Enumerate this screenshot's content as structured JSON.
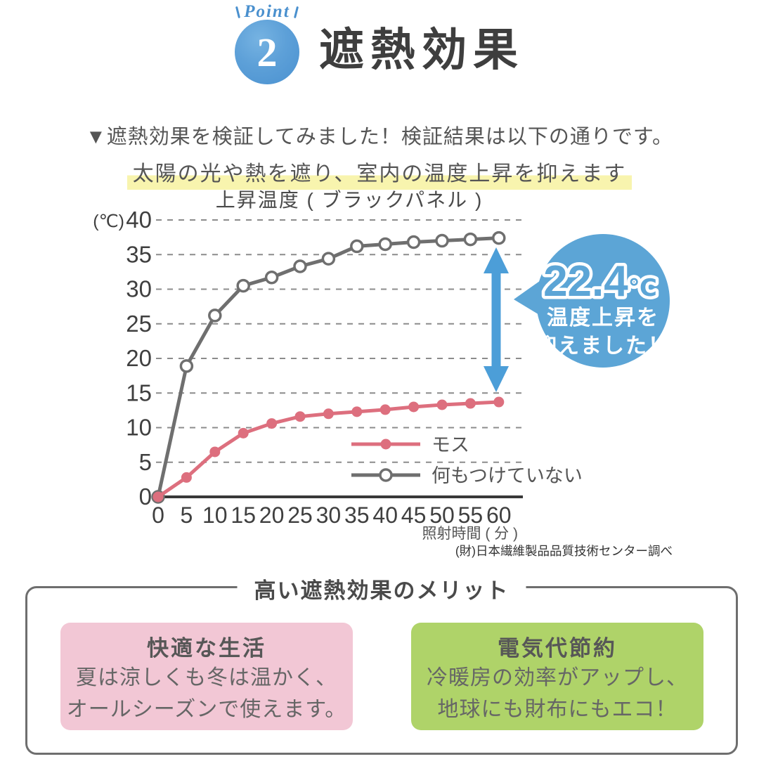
{
  "header": {
    "point_label": "Point",
    "point_number": "2",
    "title": "遮熱効果"
  },
  "intro": "▼遮熱効果を検証してみました！検証結果は以下の通りです。",
  "catchline": "太陽の光や熱を遮り、室内の温度上昇を抑えます",
  "chart_data": {
    "type": "line",
    "title": "上昇温度 ( ブラックパネル )",
    "y_unit": "(℃)",
    "xlabel": "照射時間 ( 分 )",
    "x": [
      0,
      5,
      10,
      15,
      20,
      25,
      30,
      35,
      40,
      45,
      50,
      55,
      60
    ],
    "x_ticks": [
      "0",
      "5",
      "10",
      "15",
      "20",
      "25",
      "30",
      "35",
      "40",
      "45",
      "50",
      "55",
      "60"
    ],
    "y_ticks": [
      0,
      5,
      10,
      15,
      20,
      25,
      30,
      35,
      40
    ],
    "ylim": [
      0,
      40
    ],
    "grid": "horizontal-dashed",
    "legend_position": "inside-bottom-right",
    "series": [
      {
        "name": "何もつけていない",
        "color": "#6f6f6f",
        "marker": "open-circle",
        "values": [
          0,
          18.9,
          26.2,
          30.5,
          31.7,
          33.3,
          34.4,
          36.2,
          36.5,
          36.8,
          37.0,
          37.2,
          37.4
        ]
      },
      {
        "name": "モス",
        "color": "#dd6f7e",
        "marker": "filled-circle",
        "values": [
          0,
          2.8,
          6.5,
          9.2,
          10.6,
          11.6,
          12.0,
          12.3,
          12.6,
          13.0,
          13.3,
          13.5,
          13.7
        ]
      }
    ],
    "annotation": {
      "diff_value": "22.4",
      "diff_unit": "℃",
      "bubble_lines": [
        "温度上昇を",
        "抑えました！"
      ],
      "bubble_color": "#5ca5d6",
      "arrow_color": "#4c9ed8"
    },
    "source": "(財)日本繊維製品品質技術センター調べ"
  },
  "merit": {
    "title": "高い遮熱効果のメリット",
    "cards": [
      {
        "title": "快適な生活",
        "lines": [
          "夏は涼しくも冬は温かく、",
          "オールシーズンで使えます。"
        ],
        "bg": "#f2c7d5"
      },
      {
        "title": "電気代節約",
        "lines": [
          "冷暖房の効率がアップし、",
          "地球にも財布にもエコ！"
        ],
        "bg": "#afd369"
      }
    ]
  },
  "colors": {
    "accent_blue": "#5ca5d6",
    "highlight_yellow": "#f8f4ae",
    "title_gray": "#3e3e3e"
  }
}
